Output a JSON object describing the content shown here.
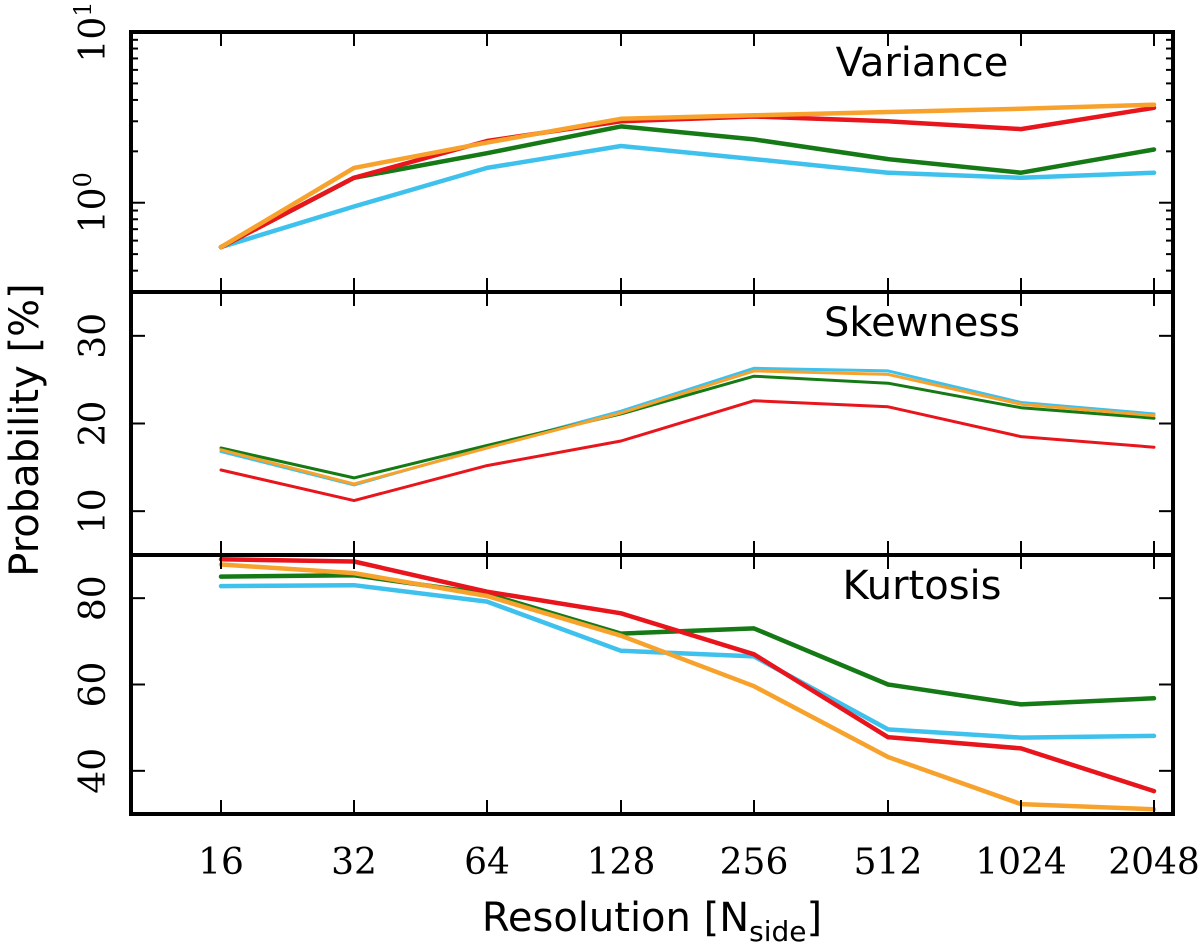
{
  "chart_data": {
    "type": "line",
    "x_categories": [
      "16",
      "32",
      "64",
      "128",
      "256",
      "512",
      "1024",
      "2048"
    ],
    "xlabel": "Resolution [N",
    "xlabel_sub": "side",
    "xlabel_close": "]",
    "ylabel": "Probability [%]",
    "colors": {
      "red": "#e8151c",
      "green": "#157a15",
      "blue": "#3ec1ec",
      "orange": "#f7a22c"
    },
    "panels": [
      {
        "title": "Variance",
        "scale": "log",
        "ylim": [
          0.3,
          10
        ],
        "ticks": [
          {
            "value": 1,
            "label_base": "10",
            "label_exp": "0"
          },
          {
            "value": 10,
            "label_base": "10",
            "label_exp": "1"
          }
        ],
        "series": [
          {
            "color": "red",
            "values": [
              0.55,
              1.4,
              2.3,
              3.0,
              3.2,
              3.0,
              2.7,
              3.6
            ]
          },
          {
            "color": "green",
            "values": [
              0.55,
              1.4,
              1.95,
              2.8,
              2.35,
              1.8,
              1.5,
              2.05
            ]
          },
          {
            "color": "blue",
            "values": [
              0.55,
              0.95,
              1.6,
              2.15,
              1.8,
              1.5,
              1.4,
              1.5
            ]
          },
          {
            "color": "orange",
            "values": [
              0.55,
              1.6,
              2.25,
              3.1,
              3.25,
              3.4,
              3.55,
              3.75
            ]
          }
        ]
      },
      {
        "title": "Skewness",
        "scale": "linear",
        "ylim": [
          5,
          35
        ],
        "ticks": [
          {
            "value": 10,
            "label": "10"
          },
          {
            "value": 20,
            "label": "20"
          },
          {
            "value": 30,
            "label": "30"
          }
        ],
        "series": [
          {
            "color": "red",
            "values": [
              14.7,
              11.2,
              15.2,
              18.0,
              22.6,
              21.9,
              18.5,
              17.3
            ]
          },
          {
            "color": "green",
            "values": [
              17.2,
              13.8,
              17.5,
              21.1,
              25.4,
              24.6,
              21.8,
              20.6
            ]
          },
          {
            "color": "blue",
            "values": [
              16.8,
              13.0,
              17.3,
              21.4,
              26.3,
              26.0,
              22.4,
              21.1
            ]
          },
          {
            "color": "orange",
            "values": [
              17.0,
              13.1,
              17.2,
              21.2,
              26.0,
              25.6,
              22.2,
              20.9
            ]
          }
        ]
      },
      {
        "title": "Kurtosis",
        "scale": "linear",
        "ylim": [
          30,
          90
        ],
        "ticks": [
          {
            "value": 40,
            "label": "40"
          },
          {
            "value": 60,
            "label": "60"
          },
          {
            "value": 80,
            "label": "80"
          }
        ],
        "series": [
          {
            "color": "red",
            "values": [
              89.0,
              88.5,
              81.5,
              76.5,
              67.0,
              47.8,
              45.2,
              35.3
            ]
          },
          {
            "color": "green",
            "values": [
              85.0,
              85.3,
              81.0,
              71.8,
              73.0,
              60.0,
              55.4,
              56.8
            ]
          },
          {
            "color": "blue",
            "values": [
              82.8,
              83.0,
              79.2,
              67.8,
              66.5,
              49.6,
              47.7,
              48.1
            ]
          },
          {
            "color": "orange",
            "values": [
              87.8,
              85.8,
              80.5,
              71.3,
              59.6,
              43.2,
              32.3,
              31.1
            ]
          }
        ]
      }
    ]
  }
}
